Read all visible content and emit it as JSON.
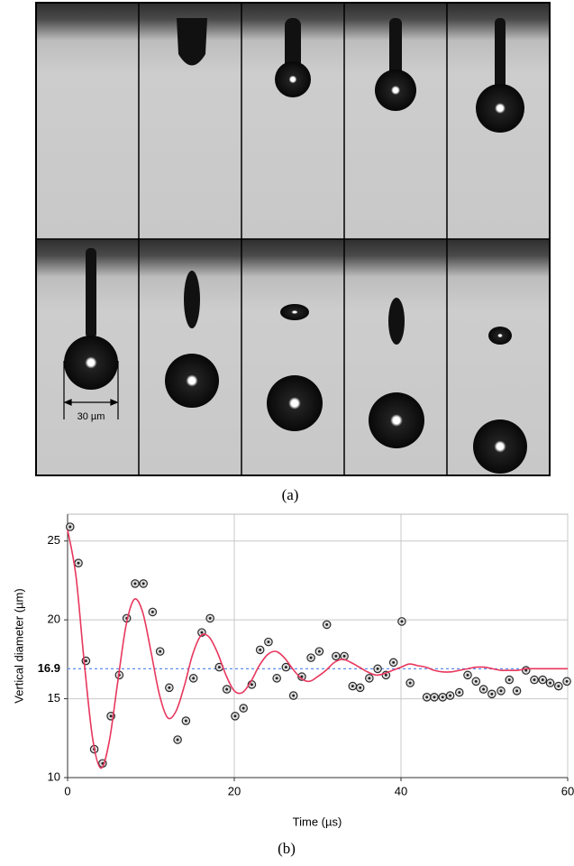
{
  "panel_a": {
    "scale_bar": "30 µm",
    "label": "(a)"
  },
  "chart_data": {
    "type": "scatter",
    "panel_label": "(b)",
    "x_label": "Time (µs)",
    "y_label": "Vertical diameter (µm)",
    "xlim": [
      0,
      60
    ],
    "xticks": [
      0,
      20,
      40,
      60
    ],
    "ylim": [
      10,
      26.7
    ],
    "yticks": [
      10,
      15,
      20,
      25
    ],
    "grid": true,
    "reference_line": 16.9,
    "reference_color": "#5b8def",
    "series": [
      {
        "type": "scatter",
        "color": "#2a2a2a",
        "x": [
          0.3,
          1.3,
          2.2,
          3.2,
          4.2,
          5.2,
          6.2,
          7.1,
          8.1,
          9.1,
          10.2,
          11.1,
          12.2,
          13.2,
          14.2,
          15.1,
          16.1,
          17.1,
          18.2,
          19.1,
          20.1,
          21.1,
          22.1,
          23.1,
          24.1,
          25.1,
          26.2,
          27.1,
          28.1,
          29.2,
          30.2,
          31.1,
          32.2,
          33.2,
          34.2,
          35.1,
          36.2,
          37.2,
          38.2,
          39.1,
          40.1,
          41.1,
          43.1,
          44.0,
          45.0,
          45.9,
          47.0,
          48.0,
          49.0,
          49.9,
          50.9,
          52.0,
          53.0,
          53.9,
          55.0,
          56.0,
          57.0,
          57.9,
          58.9,
          59.9
        ],
        "values": [
          25.9,
          23.6,
          17.4,
          11.8,
          10.9,
          13.9,
          16.5,
          20.1,
          22.3,
          22.3,
          20.5,
          18.0,
          15.7,
          12.4,
          13.6,
          16.3,
          19.2,
          20.1,
          17.0,
          15.6,
          13.9,
          14.4,
          15.9,
          18.1,
          18.6,
          16.3,
          17.0,
          15.2,
          16.4,
          17.6,
          18.0,
          19.7,
          17.7,
          17.7,
          15.8,
          15.7,
          16.3,
          16.9,
          16.5,
          17.3,
          19.9,
          16.0,
          15.1,
          15.1,
          15.1,
          15.2,
          15.4,
          16.5,
          16.1,
          15.6,
          15.3,
          15.5,
          16.2,
          15.5,
          16.8,
          16.2,
          16.2,
          16.0,
          15.8,
          16.1
        ]
      },
      {
        "type": "line",
        "color": "#e8365d",
        "x": [
          0,
          1,
          2,
          3,
          4,
          5,
          6,
          7,
          8,
          9,
          10,
          11,
          12,
          13,
          14,
          15,
          16,
          17,
          18,
          19,
          20,
          21,
          22,
          23,
          24,
          25,
          26,
          27,
          28,
          29,
          30,
          31,
          32,
          33,
          34,
          35,
          36,
          37,
          38,
          39,
          40,
          41,
          42,
          43,
          44,
          45,
          46,
          47,
          48,
          49,
          50,
          51,
          52,
          53,
          54,
          55,
          56,
          57,
          58,
          59,
          60
        ],
        "values": [
          25.7,
          22.8,
          17.3,
          12.5,
          10.6,
          12.3,
          16.0,
          19.6,
          21.3,
          20.5,
          18.0,
          15.3,
          13.8,
          14.2,
          15.8,
          17.8,
          19.0,
          18.9,
          17.9,
          16.5,
          15.5,
          15.4,
          16.1,
          17.1,
          17.8,
          18.0,
          17.6,
          16.9,
          16.3,
          16.1,
          16.4,
          16.8,
          17.3,
          17.5,
          17.3,
          17.0,
          16.7,
          16.5,
          16.6,
          16.8,
          17.0,
          17.2,
          17.1,
          17.0,
          16.8,
          16.7,
          16.7,
          16.8,
          16.9,
          17.0,
          17.0,
          16.9,
          16.8,
          16.8,
          16.8,
          16.9,
          16.9,
          16.9,
          16.9,
          16.9,
          16.9
        ]
      }
    ]
  }
}
